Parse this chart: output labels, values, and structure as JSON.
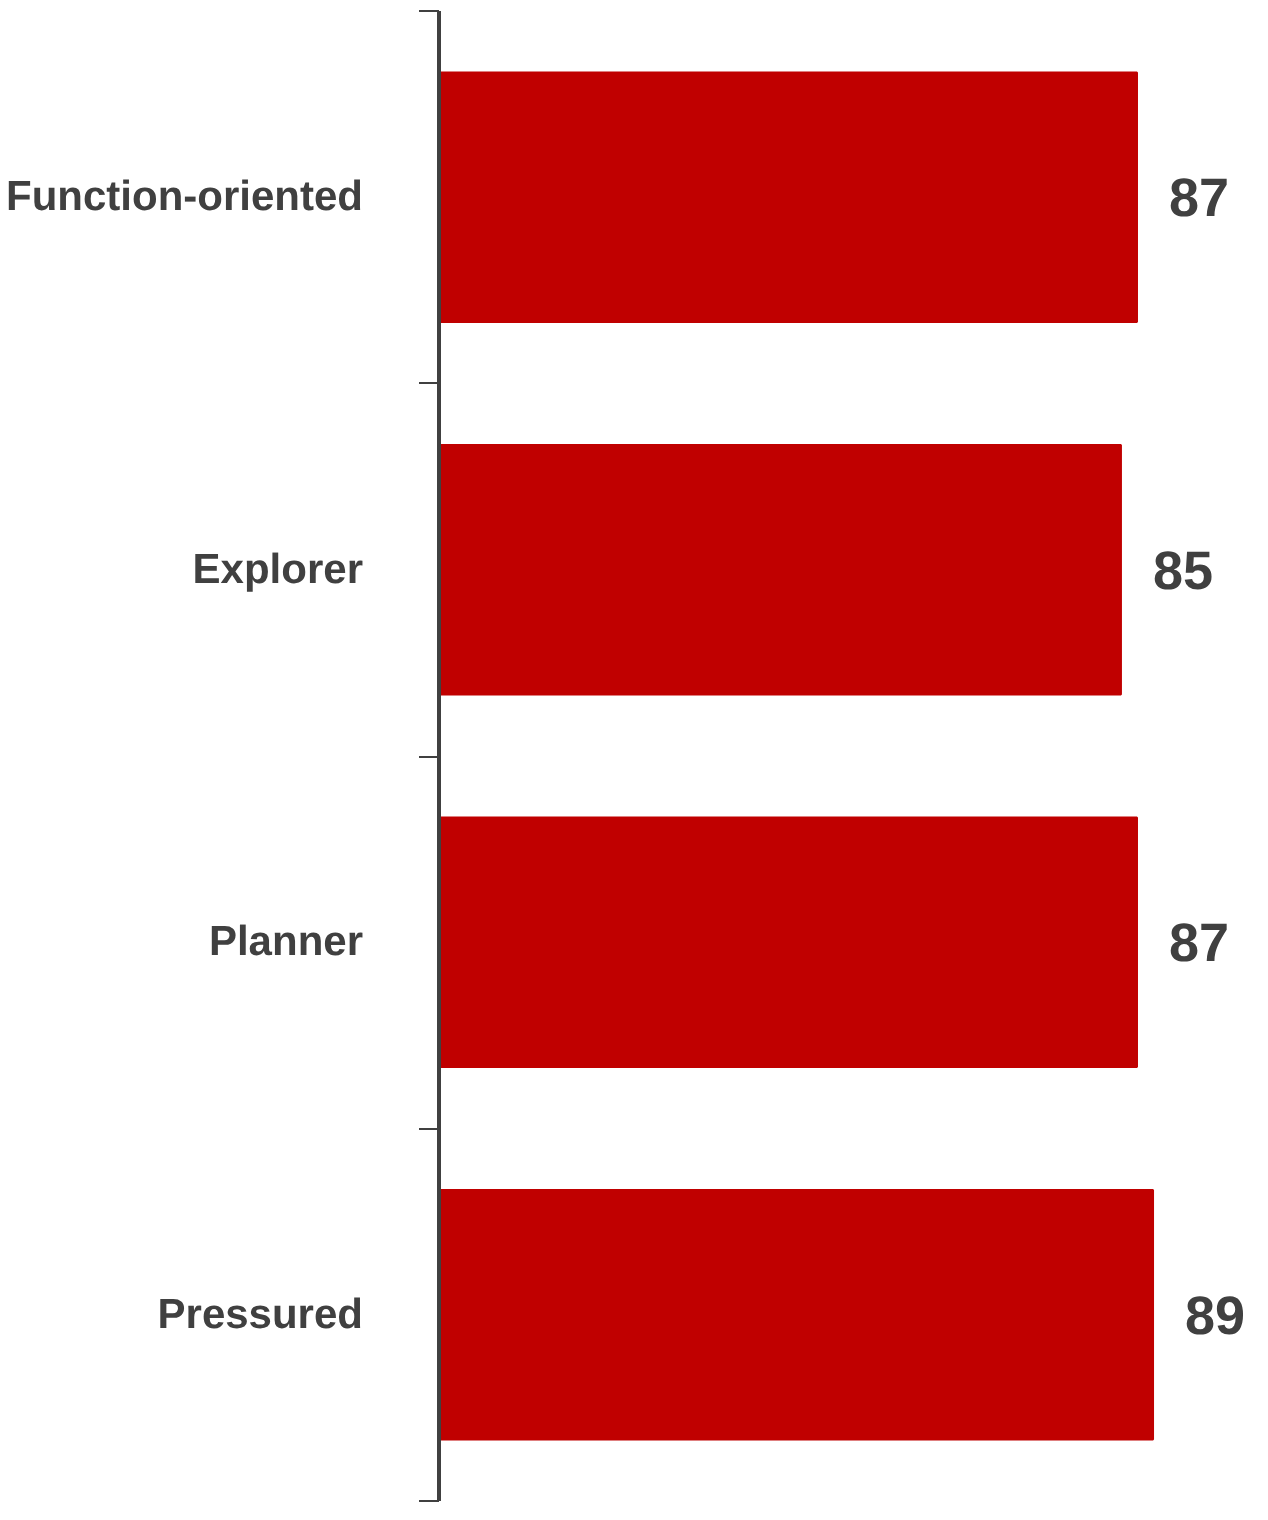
{
  "chart_data": {
    "type": "bar",
    "orientation": "horizontal",
    "categories": [
      "Function-oriented",
      "Explorer",
      "Planner",
      "Pressured"
    ],
    "values": [
      87,
      85,
      87,
      89
    ],
    "color": "#c00000",
    "data_labels": true,
    "tick_labels": "y"
  }
}
